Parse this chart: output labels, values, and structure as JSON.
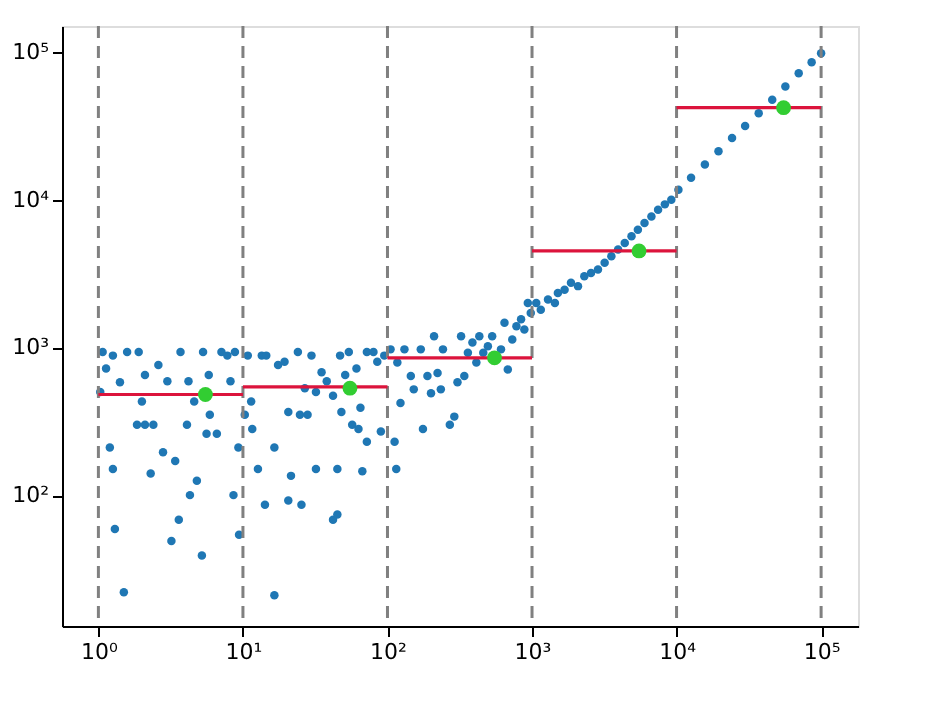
{
  "chart_data": {
    "type": "scatter",
    "log": "xy",
    "grid": false,
    "xlim": [
      0.56,
      180000
    ],
    "ylim": [
      13,
      150000
    ],
    "xticks": [
      {
        "value": 1,
        "label": "10⁰"
      },
      {
        "value": 10,
        "label": "10¹"
      },
      {
        "value": 100,
        "label": "10²"
      },
      {
        "value": 1000,
        "label": "10³"
      },
      {
        "value": 10000,
        "label": "10⁴"
      },
      {
        "value": 100000,
        "label": "10⁵"
      }
    ],
    "yticks": [
      {
        "value": 100,
        "label": "10²"
      },
      {
        "value": 1000,
        "label": "10³"
      },
      {
        "value": 10000,
        "label": "10⁴"
      },
      {
        "value": 100000,
        "label": "10⁵"
      }
    ],
    "ref_lines": [
      {
        "axis": "x",
        "value": 1,
        "color": "#808080",
        "line_style": "dashed"
      },
      {
        "axis": "x",
        "value": 10,
        "color": "#808080",
        "line_style": "dashed"
      },
      {
        "axis": "x",
        "value": 100,
        "color": "#808080",
        "line_style": "dashed"
      },
      {
        "axis": "x",
        "value": 1000,
        "color": "#808080",
        "line_style": "dashed"
      },
      {
        "axis": "x",
        "value": 10000,
        "color": "#808080",
        "line_style": "dashed"
      },
      {
        "axis": "x",
        "value": 100000,
        "color": "#808080",
        "line_style": "dashed"
      }
    ],
    "series": [
      {
        "marker": "circle",
        "color": "#1f77b4",
        "x": [
          1.03,
          1.07,
          1.13,
          1.26,
          1.41,
          1.58,
          1.2,
          1.26,
          1.3,
          1.5,
          1.9,
          2.0,
          1.85,
          2.1,
          2.4,
          2.1,
          2.3,
          2.6,
          2.8,
          3.0,
          3.4,
          3.2,
          3.6,
          3.7,
          4.1,
          4.3,
          4.8,
          5.2,
          4.6,
          5.3,
          5.8,
          5.9,
          5.6,
          6.6,
          7.1,
          7.8,
          8.2,
          8.6,
          9.3,
          9.4,
          8.8,
          4.2,
          10.3,
          10.8,
          11.4,
          11.6,
          12.7,
          13.5,
          14.5,
          16.5,
          14.2,
          16.5,
          17.5,
          19.4,
          20.6,
          20.6,
          21.5,
          24,
          24.8,
          25.4,
          26.8,
          28,
          29.8,
          32,
          32,
          35,
          38,
          42,
          42,
          45,
          45,
          47,
          48,
          51,
          54,
          57,
          61,
          63,
          67,
          72,
          72,
          80,
          85,
          90,
          95,
          65,
          105,
          117,
          123,
          131,
          112,
          115,
          145,
          152,
          170,
          176,
          189,
          200,
          210,
          222,
          234,
          242,
          270,
          290,
          305,
          323,
          340,
          360,
          387,
          412,
          432,
          460,
          495,
          530,
          610,
          645,
          680,
          730,
          780,
          840,
          885,
          935,
          980,
          1070,
          1150,
          1290,
          1440,
          1510,
          1680,
          1860,
          2080,
          2300,
          2560,
          2860,
          3180,
          3540,
          3940,
          4380,
          4880,
          5400,
          6000,
          6700,
          7450,
          8300,
          9200,
          10300,
          12600,
          15700,
          19500,
          24200,
          29800,
          37000,
          45900,
          56600,
          70000,
          86000,
          100000
        ],
        "values": [
          500,
          930,
          720,
          880,
          580,
          930,
          210,
          150,
          59,
          22,
          930,
          430,
          300,
          300,
          300,
          650,
          140,
          760,
          195,
          590,
          170,
          49,
          68,
          930,
          300,
          100,
          125,
          39,
          430,
          930,
          650,
          350,
          260,
          260,
          930,
          880,
          590,
          100,
          210,
          54,
          930,
          590,
          350,
          880,
          430,
          280,
          150,
          880,
          880,
          210,
          86,
          21,
          760,
          800,
          365,
          92,
          135,
          930,
          350,
          86,
          530,
          350,
          880,
          500,
          150,
          680,
          590,
          470,
          68,
          74,
          150,
          880,
          365,
          650,
          930,
          300,
          720,
          280,
          145,
          230,
          930,
          930,
          800,
          270,
          880,
          390,
          970,
          790,
          420,
          970,
          230,
          150,
          640,
          520,
          970,
          280,
          640,
          490,
          1190,
          670,
          520,
          970,
          300,
          340,
          580,
          1190,
          640,
          920,
          1080,
          790,
          1190,
          920,
          1020,
          1190,
          970,
          1470,
          710,
          1130,
          1390,
          1550,
          1320,
          2000,
          1710,
          2000,
          1800,
          2110,
          2000,
          2340,
          2460,
          2740,
          2600,
          3030,
          3190,
          3370,
          3740,
          4140,
          4600,
          5100,
          5650,
          6260,
          6950,
          7700,
          8550,
          9300,
          10000,
          11700,
          14100,
          17300,
          21300,
          26200,
          31600,
          38500,
          47500,
          58400,
          71800,
          85300,
          98000
        ]
      },
      {
        "marker": "circle",
        "color": "#32cd32",
        "x": [
          5.5,
          55,
          550,
          5500,
          55000
        ],
        "values": [
          480,
          530,
          850,
          4500,
          42000
        ]
      },
      {
        "type": "line",
        "color": "#dc143c",
        "x": [
          1,
          10
        ],
        "values": [
          480,
          480
        ]
      },
      {
        "type": "line",
        "color": "#dc143c",
        "x": [
          10,
          100
        ],
        "values": [
          540,
          540
        ]
      },
      {
        "type": "line",
        "color": "#dc143c",
        "x": [
          100,
          1000
        ],
        "values": [
          850,
          850
        ]
      },
      {
        "type": "line",
        "color": "#dc143c",
        "x": [
          1000,
          10000
        ],
        "values": [
          4500,
          4500
        ]
      },
      {
        "type": "line",
        "color": "#dc143c",
        "x": [
          10000,
          100000
        ],
        "values": [
          42000,
          42000
        ]
      }
    ]
  }
}
